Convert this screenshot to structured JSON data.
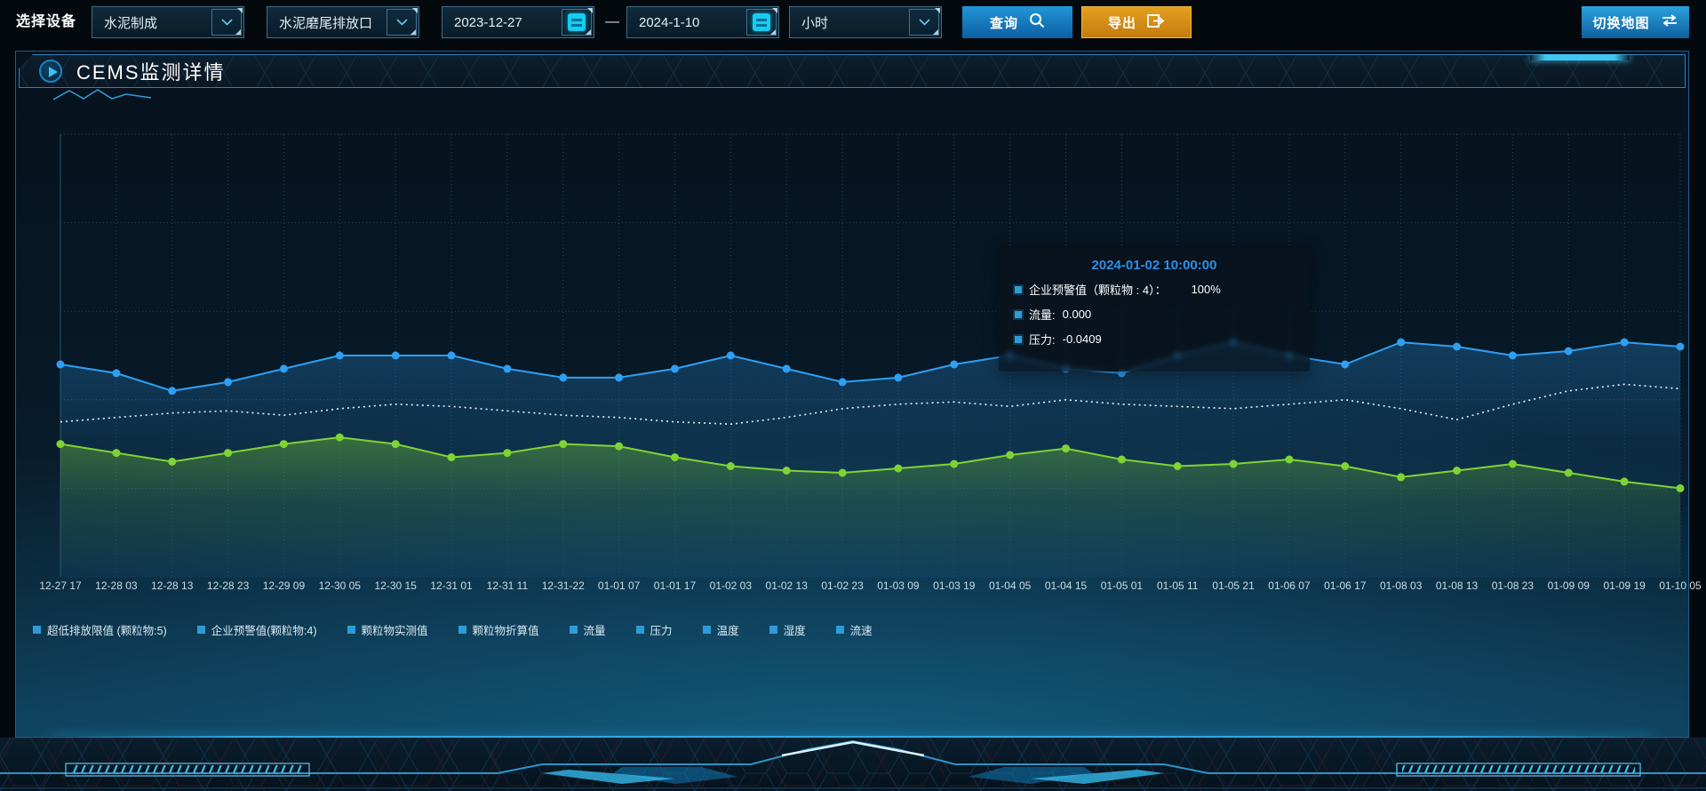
{
  "toolbar": {
    "device_label": "选择设备",
    "device_select": {
      "value": "水泥制成"
    },
    "outlet_select": {
      "value": "水泥磨尾排放口"
    },
    "date_start": "2023-12-27",
    "date_separator": "—",
    "date_end": "2024-1-10",
    "interval_select": {
      "value": "小时"
    },
    "query_button": "查询",
    "export_button": "导出",
    "switch_map_button": "切换地图"
  },
  "panel": {
    "title": "CEMS监测详情"
  },
  "tooltip": {
    "title": "2024-01-02 10:00:00",
    "rows": [
      {
        "label": "企业预警值（颗粒物 : 4）：",
        "value": "100%"
      },
      {
        "label": "流量:",
        "value": "0.000"
      },
      {
        "label": "压力:",
        "value": "-0.0409"
      }
    ]
  },
  "legend": {
    "marker_color": "#2d9bd8",
    "items": [
      "超低排放限值 (颗粒物:5)",
      "企业预警值(颗粒物:4)",
      "颗粒物实测值",
      "颗粒物折算值",
      "流量",
      "压力",
      "温度",
      "湿度",
      "流速"
    ]
  },
  "colors": {
    "accent_blue": "#2196d8",
    "accent_orange": "#dd961b",
    "tooltip_title": "#2e8fe8",
    "legend_marker": "#2d9bd8"
  },
  "chart_data": {
    "type": "line",
    "title": "",
    "xlabel": "",
    "ylabel": "",
    "ylim": [
      0,
      100
    ],
    "grid": "dotted",
    "legend_position": "bottom",
    "x": [
      "12-27 17",
      "12-28 03",
      "12-28 13",
      "12-28 23",
      "12-29 09",
      "12-30 05",
      "12-30 15",
      "12-31 01",
      "12-31 11",
      "12-31-22",
      "01-01 07",
      "01-01 17",
      "01-02 03",
      "01-02 13",
      "01-02 23",
      "01-03 09",
      "01-03 19",
      "01-04 05",
      "01-04 15",
      "01-05 01",
      "01-05 11",
      "01-05 21",
      "01-06 07",
      "01-06 17",
      "01-08 03",
      "01-08 13",
      "01-08 23",
      "01-09 09",
      "01-09 19",
      "01-10 05"
    ],
    "series": [
      {
        "name": "blue-series",
        "color": "#2f9ff2",
        "style": "solid",
        "markers": true,
        "area": true,
        "area_opacity": [
          0.28,
          0.05
        ],
        "values": [
          48,
          46,
          42,
          44,
          47,
          50,
          50,
          50,
          47,
          45,
          45,
          47,
          50,
          47,
          44,
          45,
          48,
          50,
          47,
          46,
          50,
          53,
          50,
          48,
          53,
          52,
          50,
          51,
          53,
          52
        ]
      },
      {
        "name": "white-dashed-series",
        "color": "#e8f4fa",
        "style": "dotted",
        "markers": false,
        "area": false,
        "values": [
          35,
          36,
          37,
          37.5,
          36.5,
          38,
          39,
          38.5,
          37.5,
          36.5,
          36,
          35,
          34.5,
          36,
          38,
          39,
          39.5,
          38.5,
          40,
          39,
          38.5,
          38,
          39,
          40,
          38,
          35.5,
          39,
          42,
          43.5,
          42.5
        ]
      },
      {
        "name": "green-series",
        "color": "#7fd434",
        "style": "solid",
        "markers": true,
        "area": true,
        "area_opacity": [
          0.38,
          0.0
        ],
        "values": [
          30,
          28,
          26,
          28,
          30,
          31.5,
          30,
          27,
          28,
          30,
          29.5,
          27,
          25,
          24,
          23.5,
          24.5,
          25.5,
          27.5,
          29,
          26.5,
          25,
          25.5,
          26.5,
          25,
          22.5,
          24,
          25.5,
          23.5,
          21.5,
          20
        ]
      }
    ]
  }
}
